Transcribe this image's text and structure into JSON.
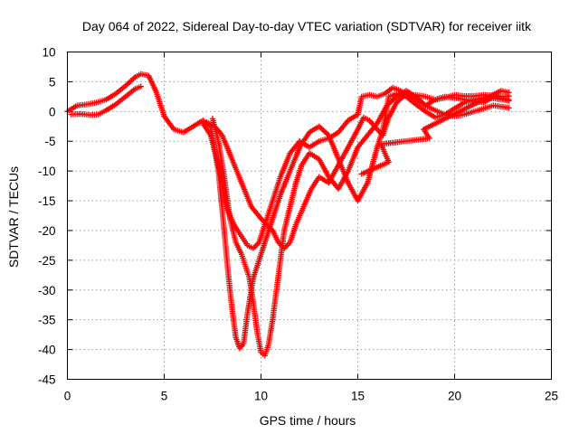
{
  "chart_data": {
    "type": "scatter",
    "title": "Day 064 of 2022, Sidereal Day-to-day VTEC variation (SDTVAR) for receiver iitk",
    "xlabel": "GPS time / hours",
    "ylabel": "SDTVAR / TECUs",
    "xlim": [
      0,
      25
    ],
    "ylim": [
      -45,
      10
    ],
    "x_ticks": [
      0,
      5,
      10,
      15,
      20,
      25
    ],
    "y_ticks": [
      10,
      5,
      0,
      -5,
      -10,
      -15,
      -20,
      -25,
      -30,
      -35,
      -40,
      -45
    ],
    "grid": true,
    "marker": "+",
    "colors": {
      "series": "#ff0000",
      "grid": "#a0a0a0",
      "frame": "#000000"
    },
    "series": [
      {
        "id": "s1",
        "points": [
          [
            0,
            0
          ],
          [
            0.5,
            1
          ],
          [
            1,
            1.2
          ],
          [
            1.5,
            1.5
          ],
          [
            2,
            2
          ],
          [
            2.5,
            3
          ],
          [
            3,
            4.3
          ],
          [
            3.5,
            5.8
          ],
          [
            3.8,
            6.3
          ],
          [
            4.2,
            6
          ],
          [
            4.6,
            3.2
          ],
          [
            5,
            -0.8
          ],
          [
            5.5,
            -3
          ],
          [
            6,
            -3.5
          ],
          [
            6.5,
            -2.5
          ],
          [
            7,
            -1.5
          ],
          [
            7.4,
            -2.5
          ],
          [
            7.8,
            -10
          ],
          [
            8.1,
            -20
          ],
          [
            8.3,
            -27
          ],
          [
            8.5,
            -33
          ],
          [
            8.7,
            -38
          ],
          [
            8.9,
            -39.8
          ],
          [
            9.1,
            -39
          ],
          [
            9.3,
            -34
          ],
          [
            9.6,
            -28
          ],
          [
            10,
            -24
          ],
          [
            10.5,
            -19
          ],
          [
            11,
            -14
          ],
          [
            11.5,
            -10
          ],
          [
            12,
            -6
          ],
          [
            12.5,
            -3.5
          ],
          [
            13,
            -2.5
          ],
          [
            13.5,
            -4
          ],
          [
            14,
            -8
          ],
          [
            14.5,
            -12
          ],
          [
            15,
            -15
          ],
          [
            15.5,
            -12
          ],
          [
            16,
            -6
          ],
          [
            16.3,
            -3
          ],
          [
            16.6,
            2.5
          ],
          [
            17,
            3
          ],
          [
            17.5,
            2.5
          ],
          [
            18,
            1.2
          ],
          [
            18.5,
            0
          ],
          [
            19,
            -1
          ],
          [
            19.5,
            -0.5
          ],
          [
            20,
            0.5
          ],
          [
            20.5,
            1.5
          ],
          [
            21,
            2
          ],
          [
            21.5,
            2.3
          ],
          [
            22,
            2.2
          ],
          [
            22.5,
            2
          ],
          [
            22.8,
            1.8
          ]
        ]
      },
      {
        "id": "s2",
        "points": [
          [
            0.2,
            -0.5
          ],
          [
            0.7,
            -0.4
          ],
          [
            1.2,
            -0.6
          ],
          [
            1.6,
            -0.5
          ],
          [
            2,
            0.2
          ],
          [
            2.5,
            1.2
          ],
          [
            3,
            2.5
          ],
          [
            3.5,
            3.8
          ],
          [
            3.8,
            4.2
          ]
        ]
      },
      {
        "id": "s3",
        "points": [
          [
            7.5,
            -1.2
          ],
          [
            7.8,
            -5
          ],
          [
            8.1,
            -11
          ],
          [
            8.4,
            -18
          ],
          [
            8.7,
            -22
          ],
          [
            9,
            -24
          ],
          [
            9.2,
            -26
          ],
          [
            9.4,
            -28
          ],
          [
            9.6,
            -32
          ],
          [
            9.8,
            -37
          ],
          [
            10,
            -40.5
          ],
          [
            10.2,
            -41
          ],
          [
            10.4,
            -39
          ],
          [
            10.6,
            -35
          ],
          [
            10.8,
            -30
          ],
          [
            11,
            -25
          ],
          [
            11.2,
            -20
          ],
          [
            11.5,
            -16
          ],
          [
            11.8,
            -12
          ],
          [
            12.1,
            -9
          ],
          [
            12.5,
            -7
          ],
          [
            13,
            -8
          ],
          [
            13.5,
            -11
          ],
          [
            14,
            -13
          ],
          [
            14.5,
            -10
          ],
          [
            15,
            -6
          ],
          [
            15.5,
            -4
          ],
          [
            16,
            -2
          ],
          [
            16.5,
            1
          ],
          [
            17,
            2.5
          ],
          [
            17.5,
            3.5
          ],
          [
            18,
            2.5
          ],
          [
            18.5,
            1
          ],
          [
            19,
            0.2
          ],
          [
            19.5,
            -0.5
          ],
          [
            20,
            -0.8
          ],
          [
            20.5,
            -0.5
          ],
          [
            21,
            0
          ],
          [
            21.5,
            0.5
          ],
          [
            22,
            1
          ],
          [
            22.5,
            0.8
          ],
          [
            22.8,
            0.6
          ]
        ]
      },
      {
        "id": "s4",
        "points": [
          [
            7.2,
            -1.8
          ],
          [
            7.6,
            -2.5
          ],
          [
            8,
            -4
          ],
          [
            8.5,
            -8
          ],
          [
            9,
            -12
          ],
          [
            9.5,
            -16
          ],
          [
            10,
            -18
          ],
          [
            10.3,
            -19
          ],
          [
            10.6,
            -20
          ],
          [
            10.9,
            -22
          ],
          [
            11.2,
            -23
          ],
          [
            11.5,
            -22
          ],
          [
            11.8,
            -19
          ],
          [
            12.2,
            -16
          ],
          [
            12.6,
            -13
          ],
          [
            13,
            -11
          ],
          [
            13.5,
            -12
          ],
          [
            14,
            -9
          ],
          [
            14.5,
            -6
          ],
          [
            15,
            -3
          ],
          [
            15.3,
            -1
          ],
          [
            15.6,
            -1.5
          ],
          [
            16,
            -3
          ],
          [
            16.3,
            -4
          ],
          [
            16.6,
            -1
          ],
          [
            17,
            1.5
          ],
          [
            17.5,
            3
          ],
          [
            18,
            2
          ],
          [
            18.5,
            1
          ],
          [
            19,
            2
          ],
          [
            19.5,
            2.5
          ],
          [
            20,
            2.3
          ],
          [
            20.5,
            2
          ],
          [
            21,
            1.8
          ],
          [
            21.5,
            1.5
          ],
          [
            22,
            2.5
          ],
          [
            22.5,
            2.2
          ],
          [
            22.8,
            2
          ]
        ]
      },
      {
        "id": "s5",
        "points": [
          [
            7,
            -2
          ],
          [
            7.4,
            -4
          ],
          [
            7.8,
            -9
          ],
          [
            8.2,
            -16
          ],
          [
            8.6,
            -19
          ],
          [
            9,
            -21
          ],
          [
            9.3,
            -22.5
          ],
          [
            9.6,
            -23
          ],
          [
            9.9,
            -22
          ],
          [
            10.2,
            -19
          ],
          [
            10.6,
            -15
          ],
          [
            11,
            -11
          ],
          [
            11.5,
            -7
          ],
          [
            12,
            -5
          ],
          [
            12.5,
            -6
          ],
          [
            13,
            -5
          ],
          [
            13.5,
            -4.5
          ],
          [
            14,
            -3.5
          ],
          [
            14.5,
            -1.5
          ],
          [
            15,
            -0.5
          ],
          [
            15.2,
            2.5
          ],
          [
            15.6,
            2.8
          ],
          [
            16,
            2.5
          ],
          [
            16.4,
            3
          ],
          [
            16.8,
            4
          ],
          [
            17.2,
            3.5
          ],
          [
            17.6,
            2.5
          ],
          [
            18,
            2.8
          ],
          [
            18.5,
            2.5
          ],
          [
            19,
            2
          ],
          [
            19.5,
            2.3
          ],
          [
            20,
            2.8
          ],
          [
            20.5,
            2.6
          ],
          [
            21,
            2.6
          ],
          [
            21.5,
            2.8
          ],
          [
            22,
            2.7
          ],
          [
            22.5,
            2.5
          ],
          [
            22.8,
            2.6
          ]
        ]
      },
      {
        "id": "s6",
        "points": [
          [
            15.2,
            -10.5
          ],
          [
            16.6,
            -8.5
          ],
          [
            16.2,
            -5.5
          ],
          [
            18.7,
            -4.5
          ],
          [
            18.4,
            -3
          ],
          [
            22.4,
            3.5
          ],
          [
            22.8,
            3.2
          ]
        ]
      }
    ]
  }
}
